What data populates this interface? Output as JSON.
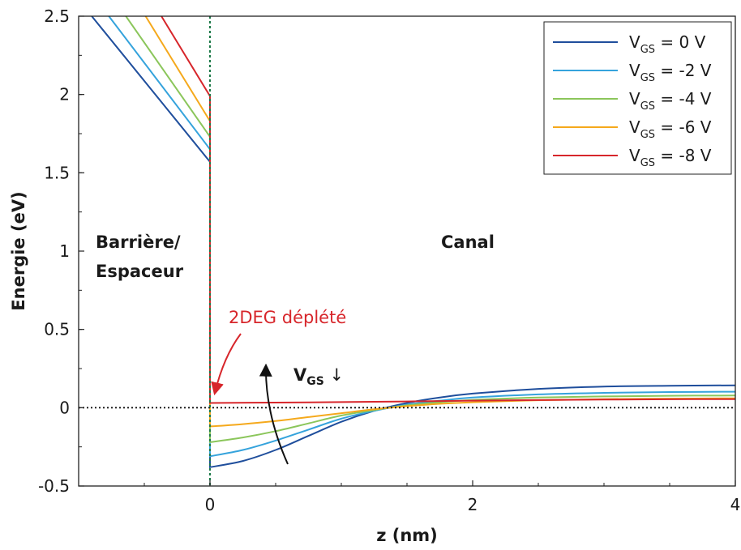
{
  "chart_data": {
    "type": "line",
    "xlabel": "z (nm)",
    "ylabel": "Energie (eV)",
    "xlim": [
      -1,
      4
    ],
    "ylim": [
      -0.5,
      2.5
    ],
    "xticks": [
      "0",
      "2",
      "4"
    ],
    "yticks": [
      "2.5",
      "2",
      "1.5",
      "1",
      "0.5",
      "0",
      "-0.5"
    ],
    "legend_position": "top-right",
    "grid": false,
    "series": [
      {
        "name_main": "V",
        "name_sub": "GS",
        "name_rest": " = 0 V",
        "color": "#1f4e9c",
        "barrier": [
          [
            -0.9,
            2.5
          ],
          [
            0,
            1.57
          ]
        ],
        "channel": [
          [
            0,
            -0.38
          ],
          [
            0.25,
            -0.34
          ],
          [
            0.5,
            -0.27
          ],
          [
            0.75,
            -0.18
          ],
          [
            1.0,
            -0.09
          ],
          [
            1.25,
            -0.02
          ],
          [
            1.5,
            0.03
          ],
          [
            1.75,
            0.065
          ],
          [
            2.0,
            0.09
          ],
          [
            2.5,
            0.12
          ],
          [
            3.0,
            0.135
          ],
          [
            3.5,
            0.14
          ],
          [
            4.0,
            0.143
          ]
        ]
      },
      {
        "name_main": "V",
        "name_sub": "GS",
        "name_rest": " = -2 V",
        "color": "#35a3dc",
        "barrier": [
          [
            -0.77,
            2.5
          ],
          [
            0,
            1.65
          ]
        ],
        "channel": [
          [
            0,
            -0.31
          ],
          [
            0.25,
            -0.27
          ],
          [
            0.5,
            -0.21
          ],
          [
            0.75,
            -0.14
          ],
          [
            1.0,
            -0.07
          ],
          [
            1.25,
            -0.02
          ],
          [
            1.5,
            0.02
          ],
          [
            1.75,
            0.045
          ],
          [
            2.0,
            0.065
          ],
          [
            2.5,
            0.085
          ],
          [
            3.0,
            0.095
          ],
          [
            3.5,
            0.1
          ],
          [
            4.0,
            0.102
          ]
        ]
      },
      {
        "name_main": "V",
        "name_sub": "GS",
        "name_rest": " = -4 V",
        "color": "#8bc65b",
        "barrier": [
          [
            -0.64,
            2.5
          ],
          [
            0,
            1.73
          ]
        ],
        "channel": [
          [
            0,
            -0.22
          ],
          [
            0.25,
            -0.19
          ],
          [
            0.5,
            -0.15
          ],
          [
            0.75,
            -0.1
          ],
          [
            1.0,
            -0.05
          ],
          [
            1.25,
            -0.015
          ],
          [
            1.5,
            0.015
          ],
          [
            1.75,
            0.035
          ],
          [
            2.0,
            0.05
          ],
          [
            2.5,
            0.065
          ],
          [
            3.0,
            0.072
          ],
          [
            3.5,
            0.076
          ],
          [
            4.0,
            0.078
          ]
        ]
      },
      {
        "name_main": "V",
        "name_sub": "GS",
        "name_rest": " = -6 V",
        "color": "#f5a91c",
        "barrier": [
          [
            -0.49,
            2.5
          ],
          [
            0,
            1.83
          ]
        ],
        "channel": [
          [
            0,
            -0.12
          ],
          [
            0.25,
            -0.105
          ],
          [
            0.5,
            -0.085
          ],
          [
            0.75,
            -0.06
          ],
          [
            1.0,
            -0.035
          ],
          [
            1.25,
            -0.01
          ],
          [
            1.5,
            0.01
          ],
          [
            1.75,
            0.025
          ],
          [
            2.0,
            0.035
          ],
          [
            2.5,
            0.048
          ],
          [
            3.0,
            0.055
          ],
          [
            3.5,
            0.058
          ],
          [
            4.0,
            0.06
          ]
        ]
      },
      {
        "name_main": "V",
        "name_sub": "GS",
        "name_rest": " = -8 V",
        "color": "#d7262b",
        "barrier": [
          [
            -0.37,
            2.5
          ],
          [
            0,
            1.99
          ]
        ],
        "channel": [
          [
            0,
            0.03
          ],
          [
            0.5,
            0.033
          ],
          [
            1.0,
            0.036
          ],
          [
            1.5,
            0.04
          ],
          [
            2.0,
            0.045
          ],
          [
            2.5,
            0.049
          ],
          [
            3.0,
            0.052
          ],
          [
            3.5,
            0.054
          ],
          [
            4.0,
            0.055
          ]
        ]
      }
    ],
    "reference_lines": {
      "zero_energy": 0,
      "interface_z": 0
    },
    "annotations": {
      "barrier_region_line1": "Barrière/",
      "barrier_region_line2": "Espaceur",
      "channel_region": "Canal",
      "depleted_2deg": "2DEG déplété",
      "vgs_main": "V",
      "vgs_sub": "GS",
      "vgs_arrow": " ↓"
    },
    "annotation_color": "#d7262b"
  }
}
